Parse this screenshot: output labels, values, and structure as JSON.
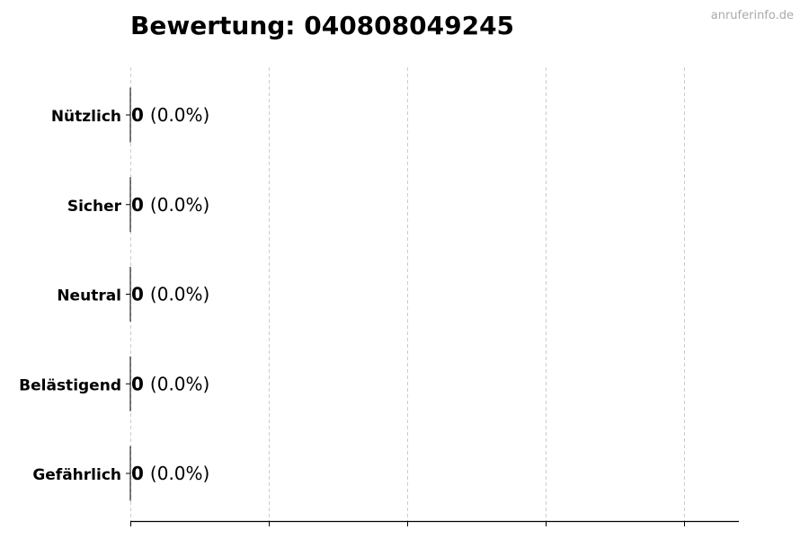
{
  "chart_data": {
    "type": "bar",
    "orientation": "horizontal",
    "title": "Bewertung: 040808049245",
    "categories": [
      "Nützlich",
      "Sicher",
      "Neutral",
      "Belästigend",
      "Gefährlich"
    ],
    "values": [
      0,
      0,
      0,
      0,
      0
    ],
    "data_labels": [
      {
        "count": "0",
        "percent": "(0.0%)"
      },
      {
        "count": "0",
        "percent": "(0.0%)"
      },
      {
        "count": "0",
        "percent": "(0.0%)"
      },
      {
        "count": "0",
        "percent": "(0.0%)"
      },
      {
        "count": "0",
        "percent": "(0.0%)"
      }
    ],
    "xlabel": "",
    "ylabel": "",
    "x_tick_count": 5,
    "grid": "vertical dashed",
    "bar_edge_color": "#000000",
    "grid_color": "#cccccc"
  },
  "watermark": "anruferinfo.de"
}
